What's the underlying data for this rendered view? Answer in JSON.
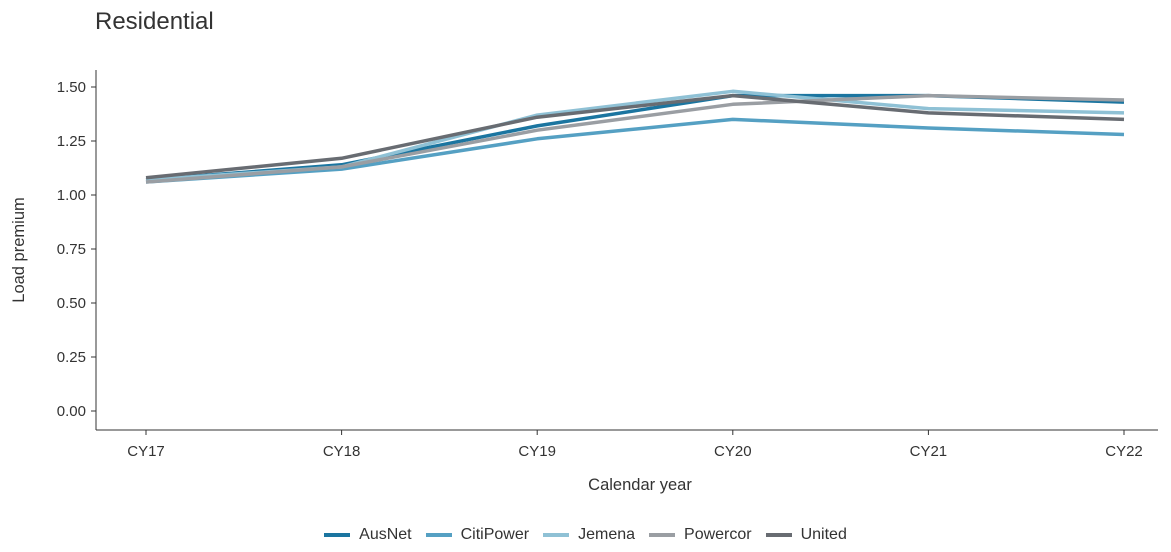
{
  "chart_data": {
    "type": "line",
    "title": "Residential",
    "xlabel": "Calendar year",
    "ylabel": "Load premium",
    "categories": [
      "CY17",
      "CY18",
      "CY19",
      "CY20",
      "CY21",
      "CY22"
    ],
    "ylim": [
      0,
      1.5
    ],
    "yticks": [
      "0.00",
      "0.25",
      "0.50",
      "0.75",
      "1.00",
      "1.25",
      "1.50"
    ],
    "grid": false,
    "legend_position": "bottom",
    "series": [
      {
        "name": "AusNet",
        "color": "#1b75a0",
        "values": [
          1.07,
          1.14,
          1.32,
          1.46,
          1.46,
          1.43
        ]
      },
      {
        "name": "CitiPower",
        "color": "#55a0c3",
        "values": [
          1.06,
          1.12,
          1.26,
          1.35,
          1.31,
          1.28
        ]
      },
      {
        "name": "Jemena",
        "color": "#8fc1d5",
        "values": [
          1.07,
          1.13,
          1.37,
          1.48,
          1.4,
          1.38
        ]
      },
      {
        "name": "Powercor",
        "color": "#9a9ea3",
        "values": [
          1.06,
          1.13,
          1.3,
          1.42,
          1.46,
          1.44
        ]
      },
      {
        "name": "United",
        "color": "#686c72",
        "values": [
          1.08,
          1.17,
          1.36,
          1.46,
          1.38,
          1.35
        ]
      }
    ]
  }
}
